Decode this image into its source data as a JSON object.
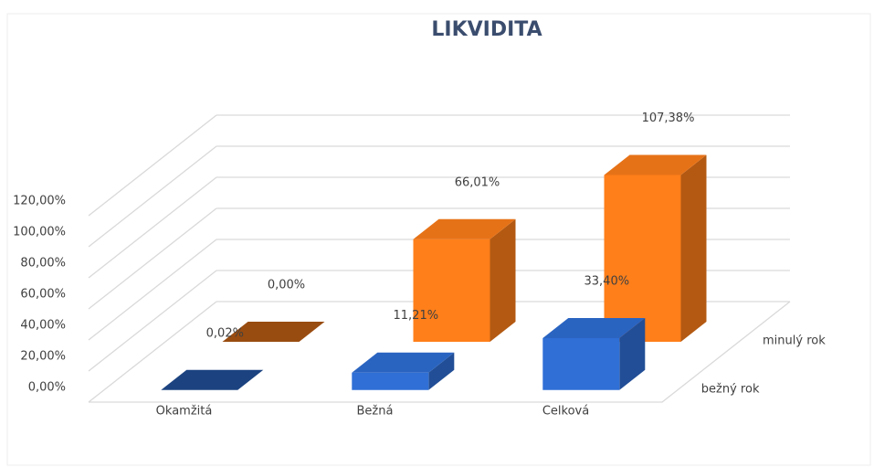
{
  "chart_data": {
    "type": "bar3d",
    "title": "LIKVIDITA",
    "categories": [
      "Okamžitá",
      "Bežná",
      "Celková"
    ],
    "series": [
      {
        "name": "bežný rok",
        "color": "#2f6fd6",
        "values": [
          0.02,
          11.21,
          33.4
        ],
        "value_labels": [
          "0,02%",
          "11,21%",
          "33,40%"
        ]
      },
      {
        "name": "minulý rok",
        "color": "#ff7f1a",
        "values": [
          0.0,
          66.01,
          107.38
        ],
        "value_labels": [
          "0,00%",
          "66,01%",
          "107,38%"
        ]
      }
    ],
    "ylim": [
      0,
      120
    ],
    "yticks": [
      {
        "value": 0,
        "label": "0,00%"
      },
      {
        "value": 20,
        "label": "20,00%"
      },
      {
        "value": 40,
        "label": "40,00%"
      },
      {
        "value": 60,
        "label": "60,00%"
      },
      {
        "value": 80,
        "label": "80,00%"
      },
      {
        "value": 100,
        "label": "100,00%"
      },
      {
        "value": 120,
        "label": "120,00%"
      }
    ],
    "grid": true
  }
}
